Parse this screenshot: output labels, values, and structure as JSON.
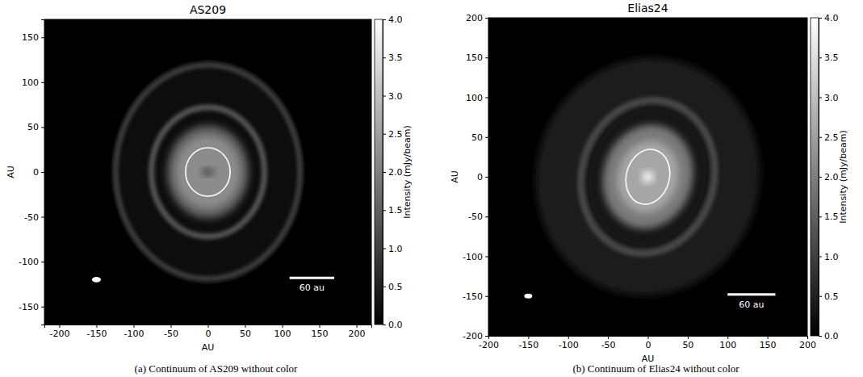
{
  "chart_data": [
    {
      "type": "image",
      "title": "AS209",
      "xlabel": "AU",
      "ylabel": "AU",
      "caption": "(a) Continuum of AS209 without color",
      "xlim": [
        -220,
        220
      ],
      "ylim": [
        -170,
        170
      ],
      "xticks": [
        -200,
        -150,
        -100,
        -50,
        0,
        50,
        100,
        150,
        200
      ],
      "yticks": [
        -150,
        -100,
        -50,
        0,
        50,
        100,
        150
      ],
      "colorbar": {
        "label": "Intensity (mJy/beam)",
        "lim": [
          0,
          4
        ],
        "ticks": [
          {
            "value": 0,
            "label": "0.0"
          },
          0.5,
          {
            "value": 1,
            "label": "1.0"
          },
          1.5,
          {
            "value": 2,
            "label": "2.0"
          },
          2.5,
          {
            "value": 3,
            "label": "3.0"
          },
          3.5,
          {
            "value": 4,
            "label": "4.0"
          }
        ]
      },
      "components": [
        {
          "kind": "disk",
          "rx": 130,
          "ry": 125,
          "pa": 0,
          "intensity": 0.2
        },
        {
          "kind": "ring",
          "rx": 124,
          "ry": 119,
          "width": 7,
          "pa": 0,
          "intensity": 0.95
        },
        {
          "kind": "ring",
          "rx": 76,
          "ry": 72,
          "width": 8,
          "pa": 0,
          "intensity": 1.3
        },
        {
          "kind": "disk",
          "rx": 55,
          "ry": 52,
          "pa": 0,
          "intensity": 1.5
        },
        {
          "kind": "disk",
          "rx": 44,
          "ry": 41,
          "pa": 0,
          "intensity": 2.2
        },
        {
          "kind": "disk",
          "rx": 9,
          "ry": 4,
          "pa": 0,
          "intensity": 1.1
        }
      ],
      "contour": {
        "rx": 30,
        "ry": 27,
        "pa": 0
      },
      "beam": {
        "x": -150,
        "y": -120,
        "rx": 6,
        "ry": 3
      },
      "scale_bar": {
        "x": 110,
        "y": -118,
        "length": 60,
        "label": "60 au"
      }
    },
    {
      "type": "image",
      "title": "Elias24",
      "xlabel": "AU",
      "ylabel": "AU",
      "caption": "(b) Continuum of Elias24 without color",
      "xlim": [
        -200,
        200
      ],
      "ylim": [
        -200,
        200
      ],
      "xticks": [
        -200,
        -150,
        -100,
        -50,
        0,
        50,
        100,
        150,
        200
      ],
      "yticks": [
        -200,
        -150,
        -100,
        -50,
        0,
        50,
        100,
        150,
        200
      ],
      "colorbar": {
        "label": "Intensity (mJy/beam)",
        "lim": [
          0,
          4
        ],
        "ticks": [
          {
            "value": 0,
            "label": "0.0"
          },
          0.5,
          {
            "value": 1,
            "label": "1.0"
          },
          1.5,
          {
            "value": 2,
            "label": "2.0"
          },
          2.5,
          {
            "value": 3,
            "label": "3.0"
          },
          3.5,
          {
            "value": 4,
            "label": "4.0"
          }
        ]
      },
      "components": [
        {
          "kind": "disk",
          "rx": 140,
          "ry": 150,
          "pa": 15,
          "intensity": 0.45
        },
        {
          "kind": "disk",
          "rx": 76,
          "ry": 90,
          "pa": 15,
          "intensity": 0.3
        },
        {
          "kind": "ring",
          "rx": 83,
          "ry": 97,
          "width": 9,
          "pa": 15,
          "intensity": 1.1
        },
        {
          "kind": "disk",
          "rx": 56,
          "ry": 66,
          "pa": 15,
          "intensity": 1.9
        },
        {
          "kind": "disk",
          "rx": 38,
          "ry": 46,
          "pa": 15,
          "intensity": 2.6
        },
        {
          "kind": "disk",
          "rx": 7,
          "ry": 7,
          "pa": 0,
          "intensity": 4
        }
      ],
      "contour": {
        "rx": 27,
        "ry": 35,
        "pa": 15
      },
      "beam": {
        "x": -150,
        "y": -150,
        "rx": 5,
        "ry": 3
      },
      "scale_bar": {
        "x": 100,
        "y": -148,
        "length": 60,
        "label": "60 au"
      }
    }
  ]
}
